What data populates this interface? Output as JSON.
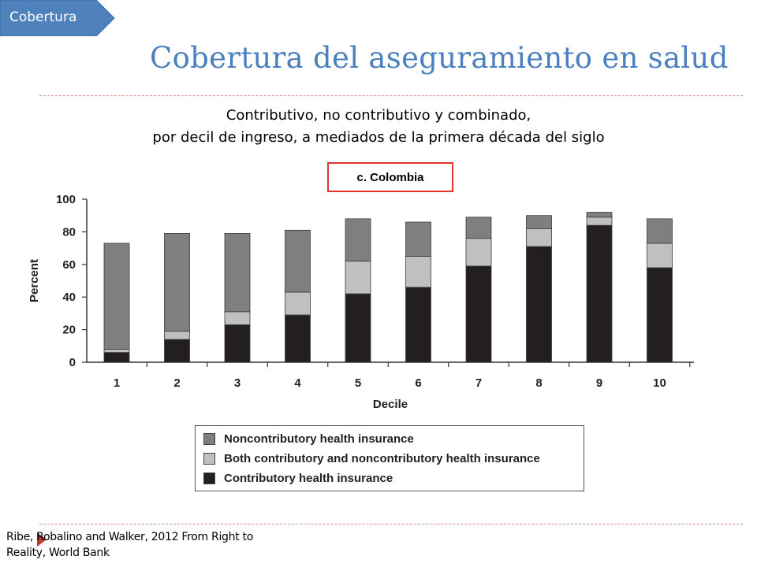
{
  "section_tag": "Cobertura",
  "slide_title": "Cobertura del aseguramiento en salud",
  "subtitle_line1": "Contributivo, no contributivo y combinado,",
  "subtitle_line2": "por decil de ingreso, a mediados de la primera década del siglo",
  "source_text": "Ribe, Robalino and Walker, 2012 From Right to Reality, World Bank",
  "colors": {
    "accent": "#4a7fc0",
    "tag_fill": "#4f81bd",
    "highlight_box": "#e2332e",
    "divider": "#d49a8a"
  },
  "chart_data": {
    "type": "bar",
    "stacked": true,
    "title": "c. Colombia",
    "xlabel": "Decile",
    "ylabel": "Percent",
    "ylim": [
      0,
      100
    ],
    "yticks": [
      "0",
      "20",
      "40",
      "60",
      "80",
      "100"
    ],
    "categories": [
      "1",
      "2",
      "3",
      "4",
      "5",
      "6",
      "7",
      "8",
      "9",
      "10"
    ],
    "series": [
      {
        "name": "Contributory health insurance",
        "color": "#231f20",
        "values": [
          6,
          14,
          23,
          29,
          42,
          46,
          59,
          71,
          84,
          58
        ]
      },
      {
        "name": "Both contributory and noncontributory health insurance",
        "color": "#c0c0c0",
        "values": [
          2,
          5,
          8,
          14,
          20,
          19,
          17,
          11,
          5,
          15
        ]
      },
      {
        "name": "Noncontributory health insurance",
        "color": "#7f7f7f",
        "values": [
          65,
          60,
          48,
          38,
          26,
          21,
          13,
          8,
          3,
          15
        ]
      }
    ],
    "legend": {
      "placement": "bottom",
      "entries": [
        "Noncontributory health insurance",
        "Both contributory and noncontributory health insurance",
        "Contributory health insurance"
      ]
    }
  }
}
